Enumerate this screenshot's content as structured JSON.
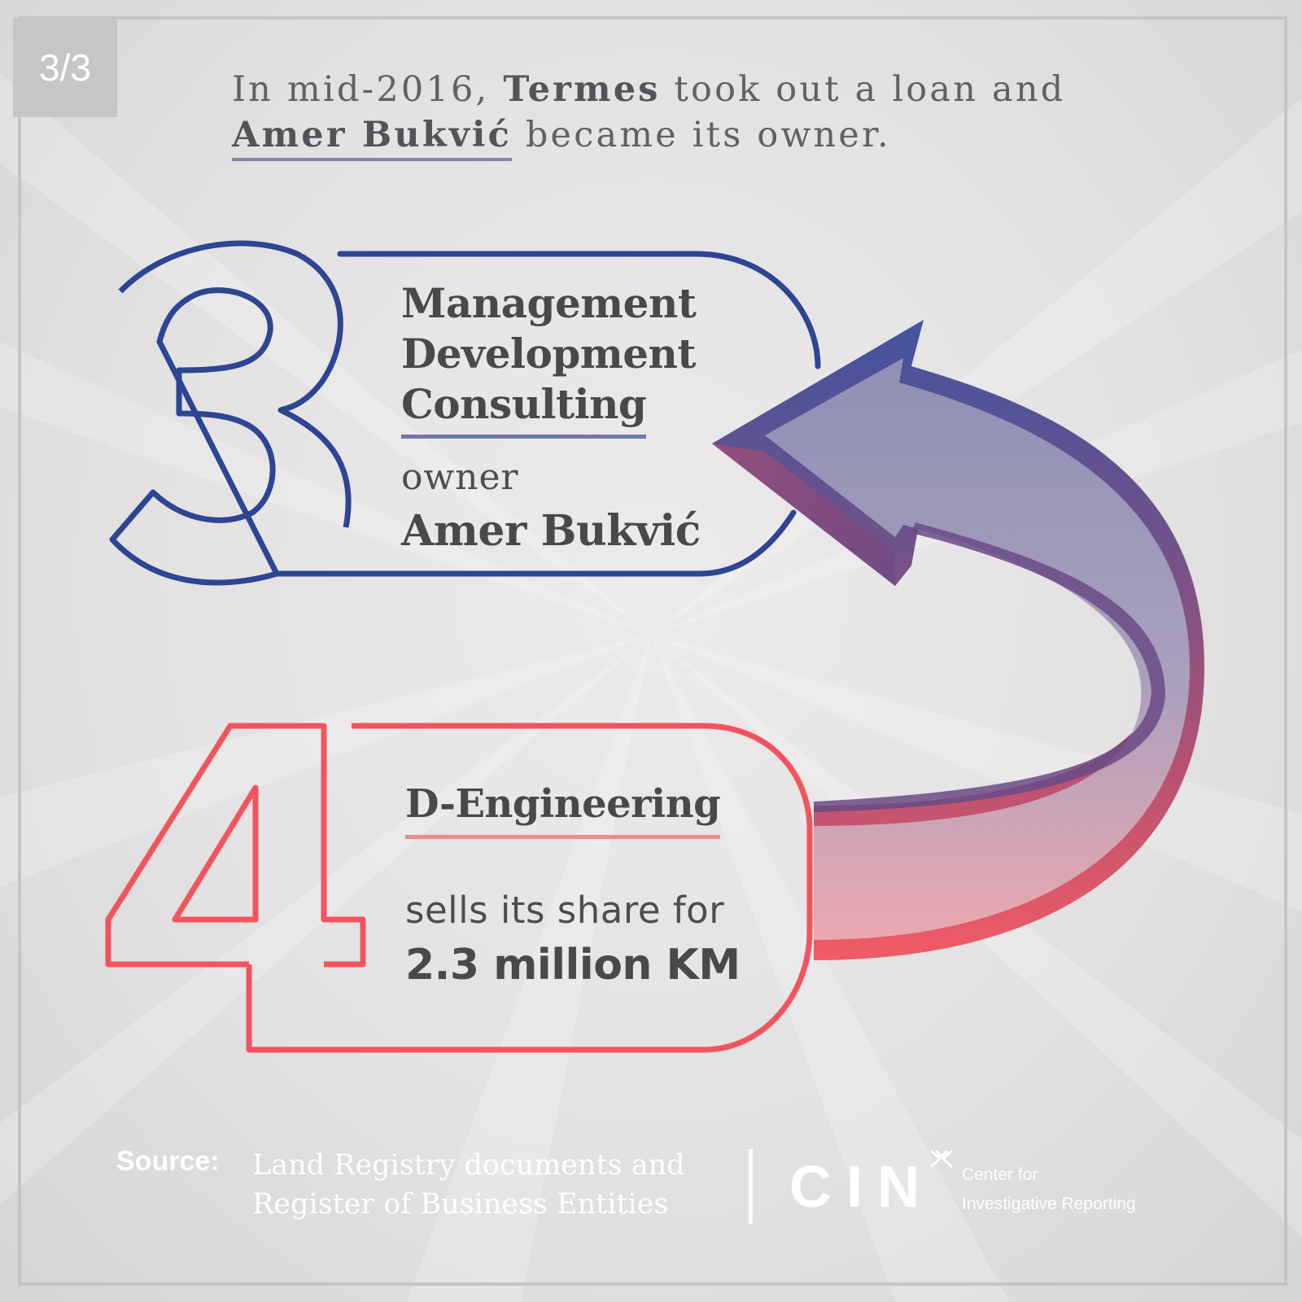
{
  "page_indicator": "3/3",
  "headline": {
    "part1": "In mid-2016, ",
    "company": "Termes",
    "part2": " took out a loan and ",
    "owner": "Amer Bukvić",
    "part3": " became its owner."
  },
  "steps": [
    {
      "number": "3",
      "company_lines": [
        "Management",
        "Development",
        "Consulting"
      ],
      "owner_label": "owner",
      "owner_name": "Amer Bukvić",
      "color": "#2d4593"
    },
    {
      "number": "4",
      "company": "D-Engineering",
      "action": "sells its share for",
      "amount": "2.3 million KM",
      "color": "#f2545e"
    }
  ],
  "source": {
    "label": "Source:",
    "text": "Land Registry documents and Register of Business Entities"
  },
  "logo": {
    "name": "CIN",
    "subtitle_line1": "Center for",
    "subtitle_line2": "Investigative Reporting"
  },
  "colors": {
    "blue": "#2d4593",
    "red": "#f2545e",
    "arrow_gradient_top": "#5f4a86",
    "arrow_gradient_bottom": "#e04a5c",
    "text": "#4a484b"
  }
}
